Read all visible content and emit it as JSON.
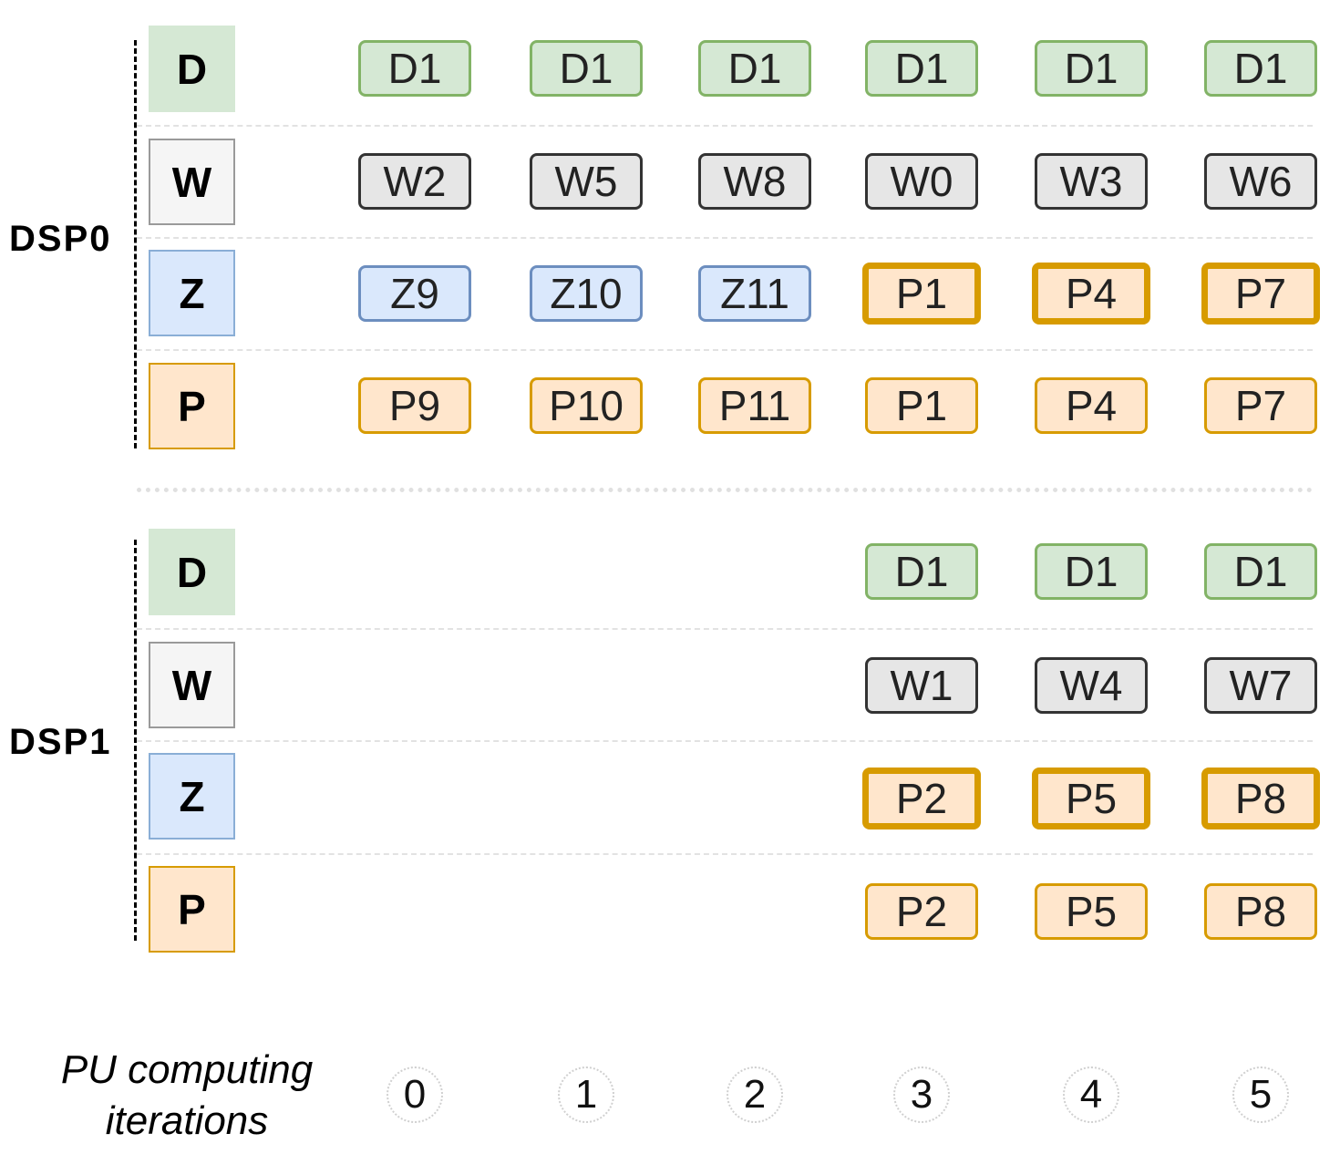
{
  "groups": [
    {
      "label": "DSP0",
      "lanes": [
        {
          "label": "D",
          "cells": [
            {
              "col": 0,
              "text": "D1",
              "style": "D"
            },
            {
              "col": 1,
              "text": "D1",
              "style": "D"
            },
            {
              "col": 2,
              "text": "D1",
              "style": "D"
            },
            {
              "col": 3,
              "text": "D1",
              "style": "D"
            },
            {
              "col": 4,
              "text": "D1",
              "style": "D"
            },
            {
              "col": 5,
              "text": "D1",
              "style": "D"
            }
          ]
        },
        {
          "label": "W",
          "cells": [
            {
              "col": 0,
              "text": "W2",
              "style": "W"
            },
            {
              "col": 1,
              "text": "W5",
              "style": "W"
            },
            {
              "col": 2,
              "text": "W8",
              "style": "W"
            },
            {
              "col": 3,
              "text": "W0",
              "style": "W"
            },
            {
              "col": 4,
              "text": "W3",
              "style": "W"
            },
            {
              "col": 5,
              "text": "W6",
              "style": "W"
            }
          ]
        },
        {
          "label": "Z",
          "cells": [
            {
              "col": 0,
              "text": "Z9",
              "style": "Z"
            },
            {
              "col": 1,
              "text": "Z10",
              "style": "Z"
            },
            {
              "col": 2,
              "text": "Z11",
              "style": "Z"
            },
            {
              "col": 3,
              "text": "P1",
              "style": "PB"
            },
            {
              "col": 4,
              "text": "P4",
              "style": "PB"
            },
            {
              "col": 5,
              "text": "P7",
              "style": "PB"
            }
          ]
        },
        {
          "label": "P",
          "cells": [
            {
              "col": 0,
              "text": "P9",
              "style": "P"
            },
            {
              "col": 1,
              "text": "P10",
              "style": "P"
            },
            {
              "col": 2,
              "text": "P11",
              "style": "P"
            },
            {
              "col": 3,
              "text": "P1",
              "style": "P"
            },
            {
              "col": 4,
              "text": "P4",
              "style": "P"
            },
            {
              "col": 5,
              "text": "P7",
              "style": "P"
            }
          ]
        }
      ]
    },
    {
      "label": "DSP1",
      "lanes": [
        {
          "label": "D",
          "cells": [
            {
              "col": 3,
              "text": "D1",
              "style": "D"
            },
            {
              "col": 4,
              "text": "D1",
              "style": "D"
            },
            {
              "col": 5,
              "text": "D1",
              "style": "D"
            }
          ]
        },
        {
          "label": "W",
          "cells": [
            {
              "col": 3,
              "text": "W1",
              "style": "W"
            },
            {
              "col": 4,
              "text": "W4",
              "style": "W"
            },
            {
              "col": 5,
              "text": "W7",
              "style": "W"
            }
          ]
        },
        {
          "label": "Z",
          "cells": [
            {
              "col": 3,
              "text": "P2",
              "style": "PB"
            },
            {
              "col": 4,
              "text": "P5",
              "style": "PB"
            },
            {
              "col": 5,
              "text": "P8",
              "style": "PB"
            }
          ]
        },
        {
          "label": "P",
          "cells": [
            {
              "col": 3,
              "text": "P2",
              "style": "P"
            },
            {
              "col": 4,
              "text": "P5",
              "style": "P"
            },
            {
              "col": 5,
              "text": "P8",
              "style": "P"
            }
          ]
        }
      ]
    }
  ],
  "axis": {
    "title_line1": "PU computing",
    "title_line2": "iterations",
    "iterations": [
      "0",
      "1",
      "2",
      "3",
      "4",
      "5"
    ]
  },
  "colors": {
    "D_fill": "#d5e8d4",
    "D_stroke": "#82b366",
    "W_fill": "#e6e6e6",
    "W_stroke": "#333333",
    "Z_fill": "#dae8fc",
    "Z_stroke": "#6c8ebf",
    "P_fill": "#ffe6cc",
    "P_stroke": "#d79b00"
  }
}
